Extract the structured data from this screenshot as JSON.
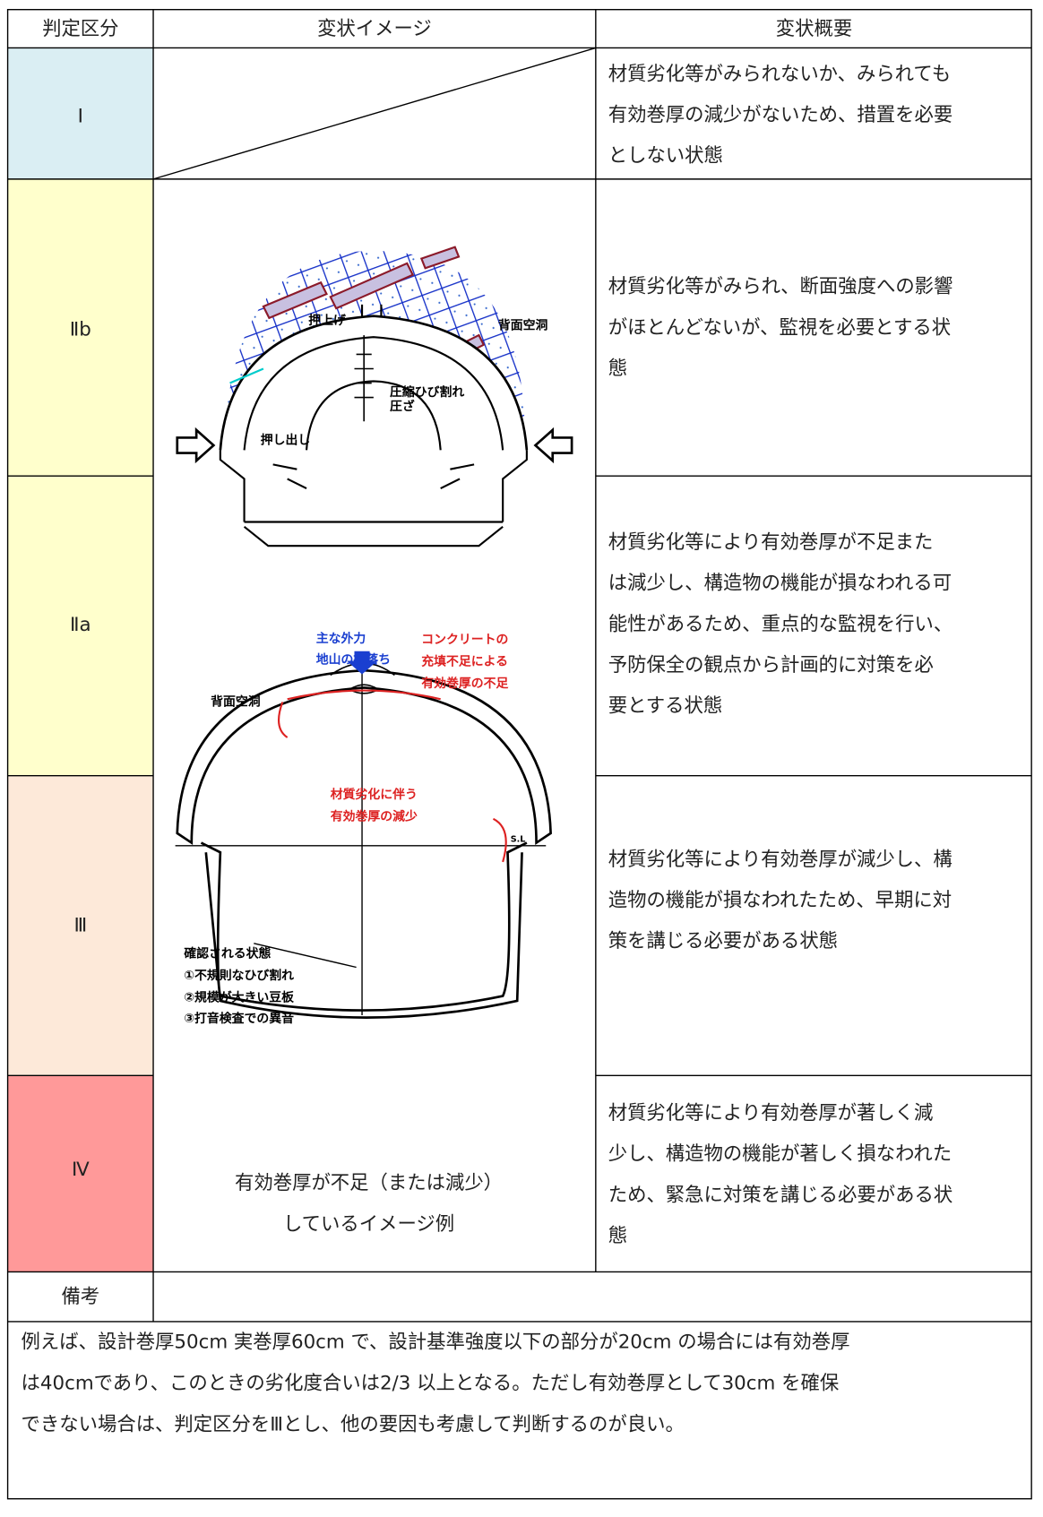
{
  "table": {
    "header": [
      "判定区分",
      "変状イメージ",
      "変状概要"
    ],
    "rows": [
      {
        "grade": "Ⅰ",
        "summary": [
          "材質劣化等がみられないか、みられても",
          "有効巻厚の減少がないため、措置を必要",
          "としない状態"
        ]
      },
      {
        "grade": "Ⅱb",
        "summary": [
          "材質劣化等がみられ、断面強度への影響",
          "がほとんどないが、監視を必要とする状",
          "態"
        ]
      },
      {
        "grade": "Ⅱa",
        "summary": [
          "材質劣化等により有効巻厚が不足また",
          "は減少し、構造物の機能が損なわれる可",
          "能性があるため、重点的な監視を行い、",
          "予防保全の観点から計画的に対策を必",
          "要とする状態"
        ]
      },
      {
        "grade": "Ⅲ",
        "summary": [
          "材質劣化等により有効巻厚が減少し、構",
          "造物の機能が損なわれたため、早期に対",
          "策を講じる必要がある状態"
        ]
      },
      {
        "grade": "Ⅳ",
        "summary": [
          "材質劣化等により有効巻厚が著しく減",
          "少し、構造物の機能が著しく損なわれた",
          "ため、緊急に対策を講じる必要がある状",
          "態"
        ]
      }
    ],
    "image_caption": [
      "有効巻厚が不足（または減少）",
      "しているイメージ例"
    ],
    "remarks_label": "備考",
    "remarks_text": [
      "例えば、設計巻厚50cm 実巻厚60cm で、設計基準強度以下の部分が20cm の場合には有効巻厚",
      "は40cmであり、このときの劣化度合いは2/3 以上となる。ただし有効巻厚として30cm を確保",
      "できない場合は、判定区分をⅢとし、他の要因も考慮して判断するのが良い。"
    ]
  },
  "figure1": {
    "labels": [
      "押上げ",
      "背面空洞",
      "圧縮ひび割れ",
      "圧ざ",
      "押し出し"
    ]
  },
  "figure2": {
    "labels": [
      "主な外力",
      "地山の抜落ち",
      "コンクリートの",
      "充填不足による",
      "有効巻厚の不足",
      "背面空洞",
      "材質劣化に伴う",
      "有効巻厚の減少",
      "S.L",
      "確認される状態",
      "①不規則なひび割れ",
      "②規模が大きい豆板",
      "③打音検査での異音"
    ]
  }
}
